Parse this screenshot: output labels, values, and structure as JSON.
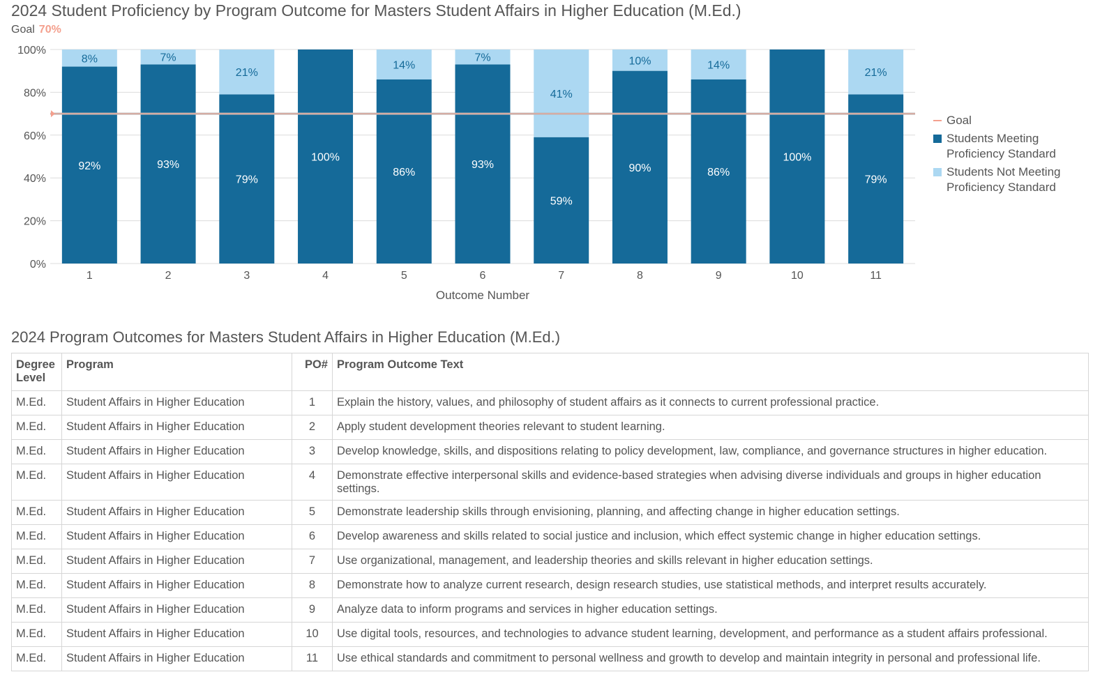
{
  "header": {
    "title": "2024 Student Proficiency by Program Outcome for Masters Student Affairs in Higher Education (M.Ed.)",
    "goal_label": "Goal",
    "goal_value": "70%"
  },
  "colors": {
    "meeting": "#156a99",
    "not_meeting": "#acd8f2",
    "goal": "#f4a08e"
  },
  "chart_data": {
    "type": "bar",
    "stacked": true,
    "title": "2024 Student Proficiency by Program Outcome for Masters Student Affairs in Higher Education (M.Ed.)",
    "xlabel": "Outcome Number",
    "ylabel": "",
    "ylim": [
      0,
      100
    ],
    "yticks": [
      "0%",
      "20%",
      "40%",
      "60%",
      "80%",
      "100%"
    ],
    "categories": [
      "1",
      "2",
      "3",
      "4",
      "5",
      "6",
      "7",
      "8",
      "9",
      "10",
      "11"
    ],
    "goal": 70,
    "grid": true,
    "legend_position": "right",
    "legend": [
      "Goal",
      "Students Meeting Proficiency Standard",
      "Students Not Meeting Proficiency Standard"
    ],
    "series": [
      {
        "name": "Students Meeting Proficiency Standard",
        "values": [
          92,
          93,
          79,
          100,
          86,
          93,
          59,
          90,
          86,
          100,
          79
        ]
      },
      {
        "name": "Students Not Meeting Proficiency Standard",
        "values": [
          8,
          7,
          21,
          0,
          14,
          7,
          41,
          10,
          14,
          0,
          21
        ]
      }
    ]
  },
  "table": {
    "title": "2024 Program Outcomes for Masters Student Affairs in Higher Education (M.Ed.)",
    "headers": [
      "Degree Level",
      "Program",
      "PO#",
      "Program Outcome Text"
    ],
    "rows": [
      [
        "M.Ed.",
        "Student Affairs in Higher Education",
        "1",
        "Explain the history, values, and philosophy of student affairs as it connects to current professional practice."
      ],
      [
        "M.Ed.",
        "Student Affairs in Higher Education",
        "2",
        "Apply student development theories relevant to student learning."
      ],
      [
        "M.Ed.",
        "Student Affairs in Higher Education",
        "3",
        "Develop knowledge, skills, and dispositions relating to policy development, law, compliance, and governance structures in higher education."
      ],
      [
        "M.Ed.",
        "Student Affairs in Higher Education",
        "4",
        "Demonstrate effective interpersonal skills and evidence-based strategies when advising diverse individuals and groups in higher education settings."
      ],
      [
        "M.Ed.",
        "Student Affairs in Higher Education",
        "5",
        "Demonstrate leadership skills through envisioning, planning, and affecting change in higher education settings."
      ],
      [
        "M.Ed.",
        "Student Affairs in Higher Education",
        "6",
        "Develop awareness and skills related to social justice and inclusion, which effect systemic change in higher education settings."
      ],
      [
        "M.Ed.",
        "Student Affairs in Higher Education",
        "7",
        "Use organizational, management, and leadership theories and skills relevant in higher education settings."
      ],
      [
        "M.Ed.",
        "Student Affairs in Higher Education",
        "8",
        "Demonstrate how to analyze current research, design research studies, use statistical methods, and interpret results accurately."
      ],
      [
        "M.Ed.",
        "Student Affairs in Higher Education",
        "9",
        "Analyze data to inform programs and services in higher education settings."
      ],
      [
        "M.Ed.",
        "Student Affairs in Higher Education",
        "10",
        "Use digital tools, resources, and technologies to advance student learning, development, and performance as a student affairs professional."
      ],
      [
        "M.Ed.",
        "Student Affairs in Higher Education",
        "11",
        "Use ethical standards and commitment to personal wellness and growth to develop and maintain integrity in personal and professional life."
      ]
    ]
  }
}
